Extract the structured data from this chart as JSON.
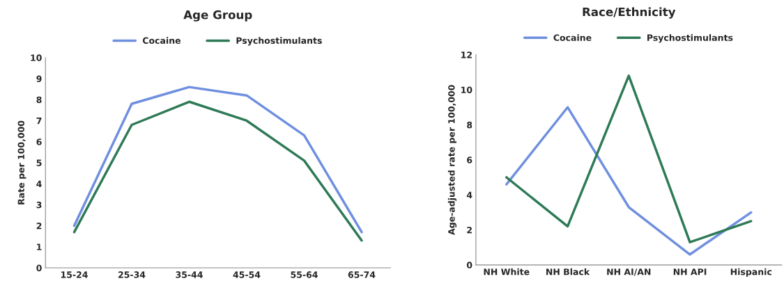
{
  "chart_data": [
    {
      "type": "line",
      "title": "Age Group",
      "ylabel": "Rate per 100,000",
      "categories": [
        "15-24",
        "25-34",
        "35-44",
        "45-54",
        "55-64",
        "65-74"
      ],
      "series": [
        {
          "name": "Cocaine",
          "color": "#6f8fdf",
          "values": [
            2.0,
            7.8,
            8.6,
            8.2,
            6.3,
            1.7
          ]
        },
        {
          "name": "Psychostimulants",
          "color": "#2e7a57",
          "values": [
            1.7,
            6.8,
            7.9,
            7.0,
            5.1,
            1.3
          ]
        }
      ],
      "ylim": [
        0,
        10
      ],
      "yticks": [
        0,
        1,
        2,
        3,
        4,
        5,
        6,
        7,
        8,
        9,
        10
      ],
      "grid": false,
      "legend": "top"
    },
    {
      "type": "line",
      "title": "Race/Ethnicity",
      "ylabel": "Age-adjusted rate per 100,000",
      "categories": [
        "NH White",
        "NH Black",
        "NH AI/AN",
        "NH API",
        "Hispanic"
      ],
      "series": [
        {
          "name": "Cocaine",
          "color": "#6f8fdf",
          "values": [
            4.6,
            9.0,
            3.3,
            0.6,
            3.0
          ]
        },
        {
          "name": "Psychostimulants",
          "color": "#2e7a57",
          "values": [
            5.0,
            2.2,
            10.8,
            1.3,
            2.5
          ]
        }
      ],
      "ylim": [
        0,
        12
      ],
      "yticks": [
        0,
        2,
        4,
        6,
        8,
        10,
        12
      ],
      "grid": false,
      "legend": "top"
    }
  ]
}
